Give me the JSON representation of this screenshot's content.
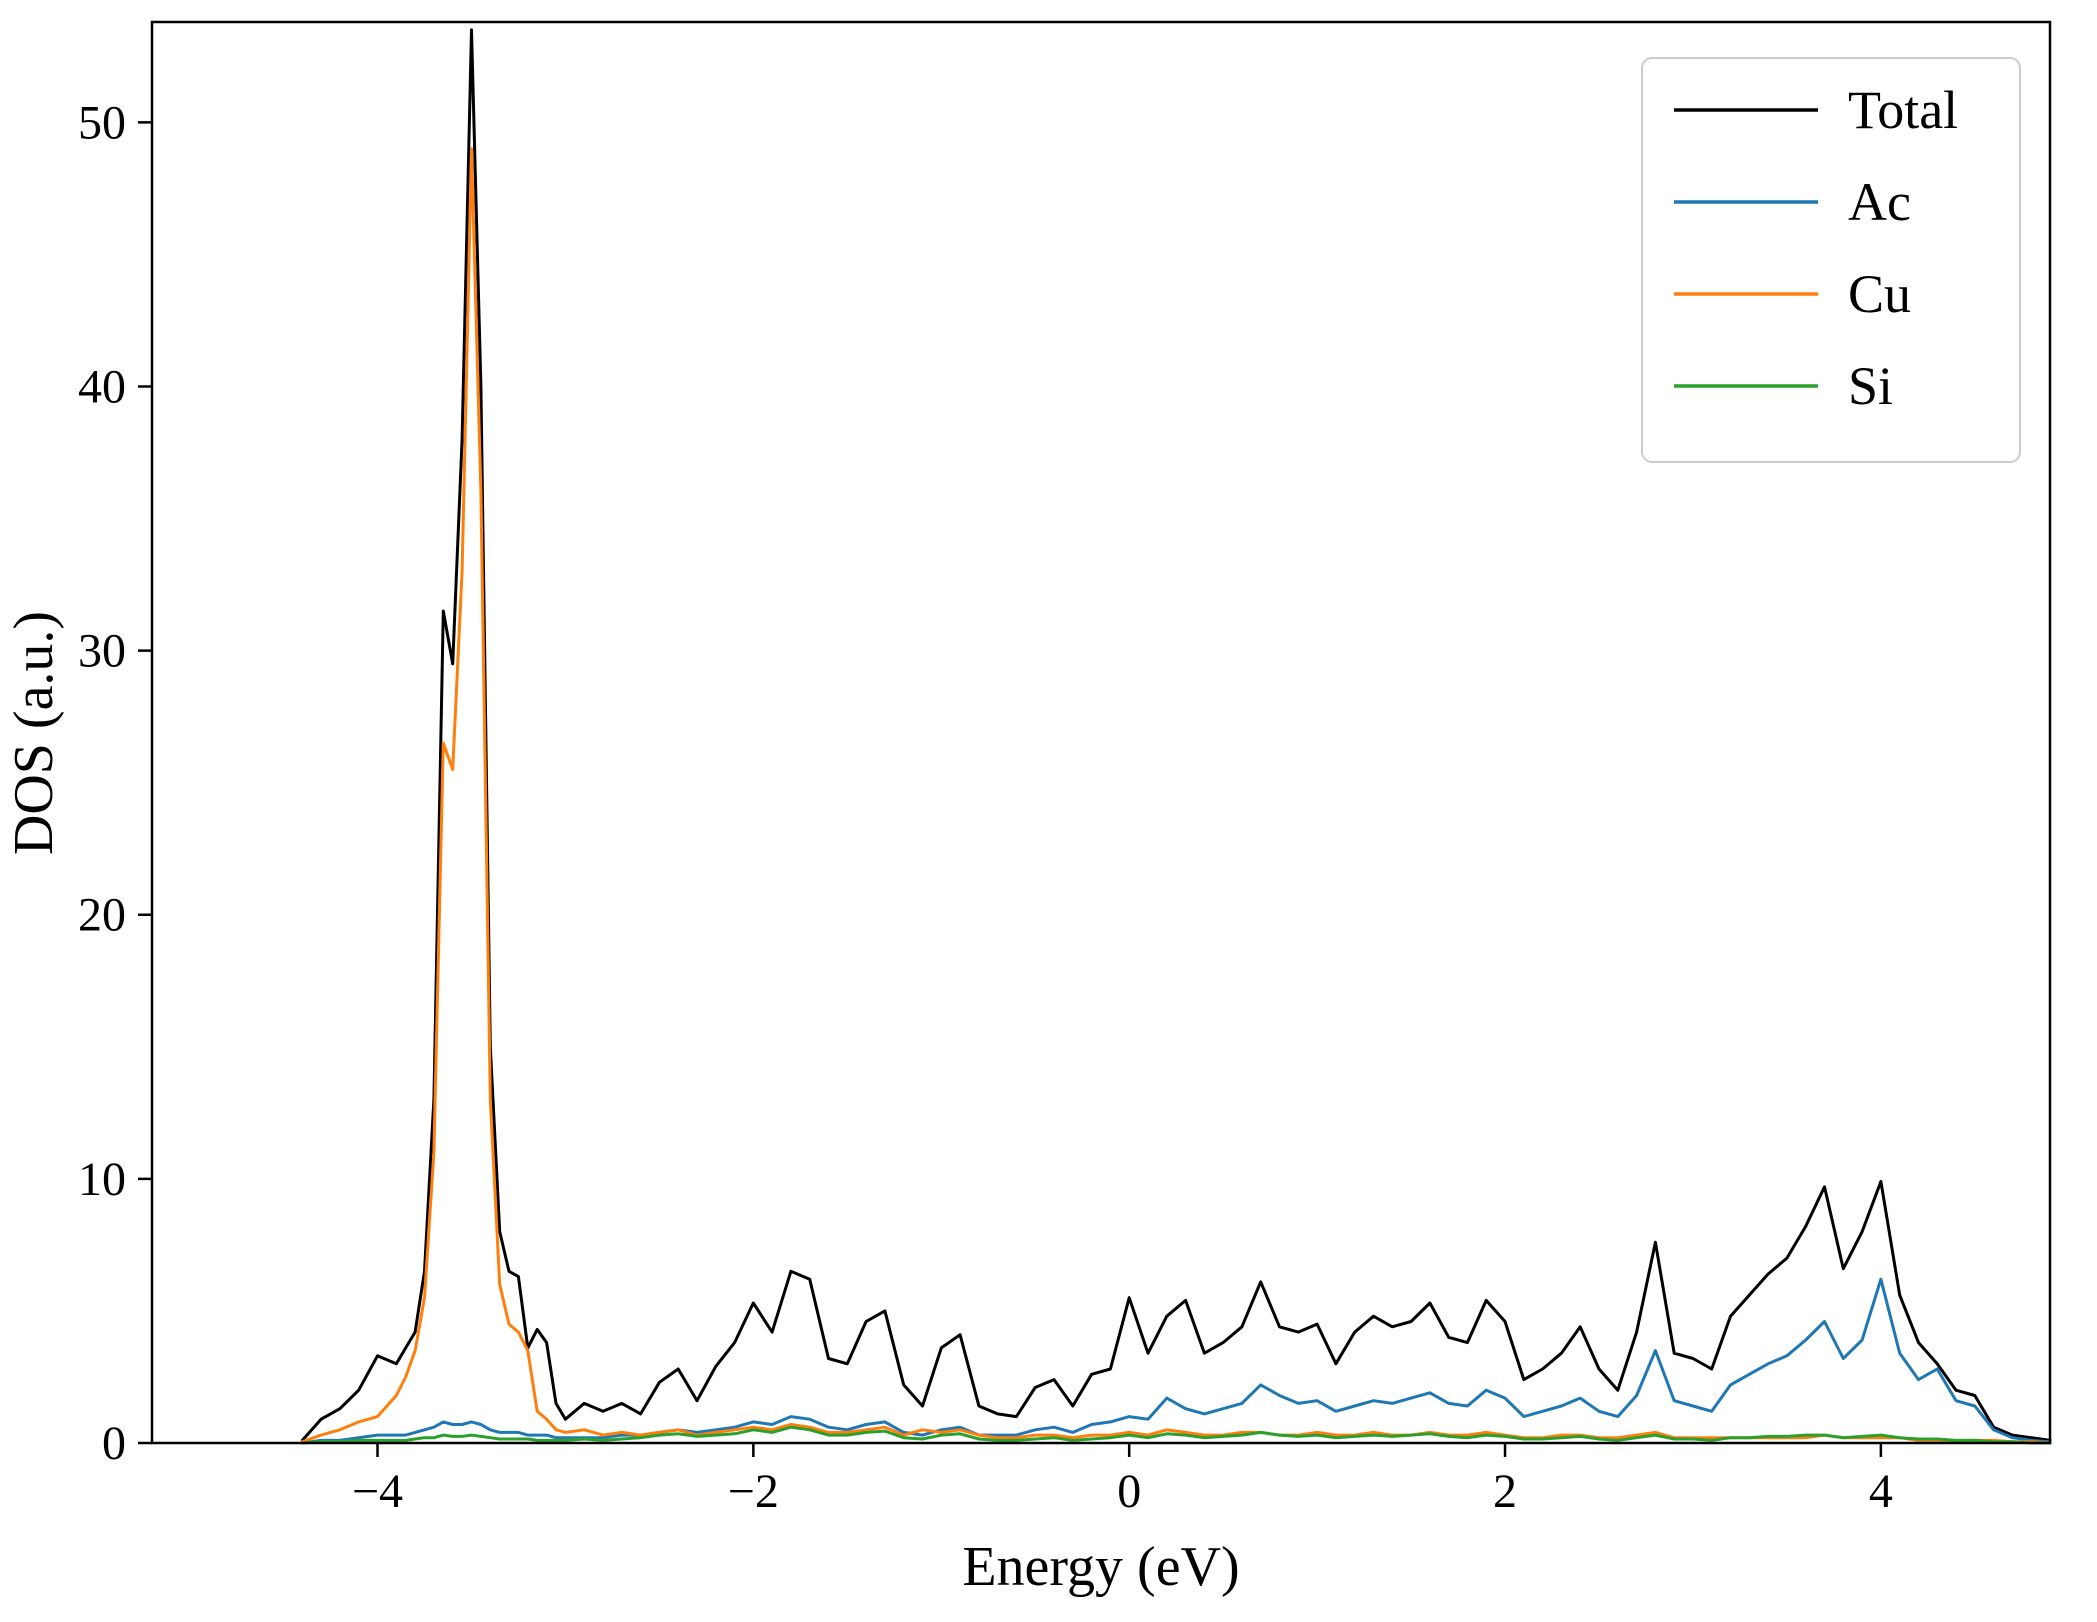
{
  "figure": {
    "background": "#ffffff"
  },
  "chart_data": {
    "type": "line",
    "title": "",
    "xlabel": "Energy (eV)",
    "ylabel": "DOS (a.u.)",
    "xlim": [
      -5.2,
      4.9
    ],
    "ylim": [
      0,
      53.8
    ],
    "grid": false,
    "xticks": [
      {
        "v": -4,
        "label": "−4"
      },
      {
        "v": -2,
        "label": "−2"
      },
      {
        "v": 0,
        "label": "0"
      },
      {
        "v": 2,
        "label": "2"
      },
      {
        "v": 4,
        "label": "4"
      }
    ],
    "yticks": [
      {
        "v": 0,
        "label": "0"
      },
      {
        "v": 10,
        "label": "10"
      },
      {
        "v": 20,
        "label": "20"
      },
      {
        "v": 30,
        "label": "30"
      },
      {
        "v": 40,
        "label": "40"
      },
      {
        "v": 50,
        "label": "50"
      }
    ],
    "legend": {
      "position": "upper right",
      "entries": [
        "Total",
        "Ac",
        "Cu",
        "Si"
      ]
    },
    "x": [
      -4.4,
      -4.3,
      -4.2,
      -4.1,
      -4.0,
      -3.9,
      -3.85,
      -3.8,
      -3.75,
      -3.7,
      -3.65,
      -3.6,
      -3.55,
      -3.5,
      -3.45,
      -3.4,
      -3.35,
      -3.3,
      -3.25,
      -3.2,
      -3.15,
      -3.1,
      -3.05,
      -3.0,
      -2.9,
      -2.8,
      -2.7,
      -2.6,
      -2.5,
      -2.4,
      -2.3,
      -2.2,
      -2.1,
      -2.0,
      -1.9,
      -1.8,
      -1.7,
      -1.6,
      -1.5,
      -1.4,
      -1.3,
      -1.2,
      -1.1,
      -1.0,
      -0.9,
      -0.8,
      -0.7,
      -0.6,
      -0.5,
      -0.4,
      -0.3,
      -0.2,
      -0.1,
      0.0,
      0.1,
      0.2,
      0.3,
      0.4,
      0.5,
      0.6,
      0.7,
      0.8,
      0.9,
      1.0,
      1.1,
      1.2,
      1.3,
      1.4,
      1.5,
      1.6,
      1.7,
      1.8,
      1.9,
      2.0,
      2.1,
      2.2,
      2.3,
      2.4,
      2.5,
      2.6,
      2.7,
      2.8,
      2.9,
      3.0,
      3.1,
      3.2,
      3.3,
      3.4,
      3.5,
      3.6,
      3.7,
      3.8,
      3.9,
      4.0,
      4.1,
      4.2,
      4.3,
      4.4,
      4.5,
      4.6,
      4.7,
      4.8,
      4.9
    ],
    "series": [
      {
        "name": "Total",
        "color": "#000000",
        "values": [
          0.1,
          0.9,
          1.3,
          2.0,
          3.3,
          3.0,
          3.6,
          4.2,
          6.5,
          13.0,
          31.5,
          29.5,
          38.0,
          53.5,
          40.0,
          15.0,
          8.0,
          6.5,
          6.3,
          3.6,
          4.3,
          3.8,
          1.5,
          0.9,
          1.5,
          1.2,
          1.5,
          1.1,
          2.3,
          2.8,
          1.6,
          2.9,
          3.8,
          5.3,
          4.2,
          6.5,
          6.2,
          3.2,
          3.0,
          4.6,
          5.0,
          2.2,
          1.4,
          3.6,
          4.1,
          1.4,
          1.1,
          1.0,
          2.1,
          2.4,
          1.4,
          2.6,
          2.8,
          5.5,
          3.4,
          4.8,
          5.4,
          3.4,
          3.8,
          4.4,
          6.1,
          4.4,
          4.2,
          4.5,
          3.0,
          4.2,
          4.8,
          4.4,
          4.6,
          5.3,
          4.0,
          3.8,
          5.4,
          4.6,
          2.4,
          2.8,
          3.4,
          4.4,
          2.8,
          2.0,
          4.2,
          7.6,
          3.4,
          3.2,
          2.8,
          4.8,
          5.6,
          6.4,
          7.0,
          8.2,
          9.7,
          6.6,
          8.0,
          9.9,
          5.6,
          3.8,
          3.0,
          2.0,
          1.8,
          0.6,
          0.3,
          0.2,
          0.1
        ]
      },
      {
        "name": "Ac",
        "color": "#1f77b4",
        "values": [
          0.0,
          0.1,
          0.1,
          0.2,
          0.3,
          0.3,
          0.3,
          0.4,
          0.5,
          0.6,
          0.8,
          0.7,
          0.7,
          0.8,
          0.7,
          0.5,
          0.4,
          0.4,
          0.4,
          0.3,
          0.3,
          0.3,
          0.2,
          0.2,
          0.2,
          0.2,
          0.3,
          0.3,
          0.4,
          0.5,
          0.4,
          0.5,
          0.6,
          0.8,
          0.7,
          1.0,
          0.9,
          0.6,
          0.5,
          0.7,
          0.8,
          0.4,
          0.3,
          0.5,
          0.6,
          0.3,
          0.3,
          0.3,
          0.5,
          0.6,
          0.4,
          0.7,
          0.8,
          1.0,
          0.9,
          1.7,
          1.3,
          1.1,
          1.3,
          1.5,
          2.2,
          1.8,
          1.5,
          1.6,
          1.2,
          1.4,
          1.6,
          1.5,
          1.7,
          1.9,
          1.5,
          1.4,
          2.0,
          1.7,
          1.0,
          1.2,
          1.4,
          1.7,
          1.2,
          1.0,
          1.8,
          3.5,
          1.6,
          1.4,
          1.2,
          2.2,
          2.6,
          3.0,
          3.3,
          3.9,
          4.6,
          3.2,
          3.9,
          6.2,
          3.4,
          2.4,
          2.8,
          1.6,
          1.4,
          0.5,
          0.2,
          0.1,
          0.05
        ]
      },
      {
        "name": "Cu",
        "color": "#ff7f0e",
        "values": [
          0.05,
          0.3,
          0.5,
          0.8,
          1.0,
          1.8,
          2.5,
          3.5,
          5.5,
          11.0,
          26.5,
          25.5,
          33.0,
          49.0,
          36.0,
          13.0,
          6.0,
          4.5,
          4.2,
          3.5,
          1.2,
          0.9,
          0.5,
          0.4,
          0.5,
          0.3,
          0.4,
          0.3,
          0.4,
          0.5,
          0.3,
          0.4,
          0.5,
          0.6,
          0.5,
          0.7,
          0.6,
          0.4,
          0.4,
          0.5,
          0.6,
          0.3,
          0.5,
          0.4,
          0.5,
          0.3,
          0.2,
          0.2,
          0.3,
          0.3,
          0.2,
          0.3,
          0.3,
          0.4,
          0.3,
          0.5,
          0.4,
          0.3,
          0.3,
          0.4,
          0.4,
          0.3,
          0.3,
          0.4,
          0.3,
          0.3,
          0.4,
          0.3,
          0.3,
          0.4,
          0.3,
          0.3,
          0.4,
          0.3,
          0.2,
          0.2,
          0.3,
          0.3,
          0.2,
          0.2,
          0.3,
          0.4,
          0.2,
          0.2,
          0.2,
          0.2,
          0.2,
          0.2,
          0.2,
          0.2,
          0.3,
          0.2,
          0.2,
          0.2,
          0.2,
          0.1,
          0.1,
          0.1,
          0.1,
          0.1,
          0.05,
          0.05,
          0.0
        ]
      },
      {
        "name": "Si",
        "color": "#2ca02c",
        "values": [
          0.0,
          0.05,
          0.05,
          0.1,
          0.1,
          0.1,
          0.1,
          0.15,
          0.2,
          0.2,
          0.3,
          0.25,
          0.25,
          0.3,
          0.25,
          0.2,
          0.15,
          0.15,
          0.15,
          0.15,
          0.1,
          0.1,
          0.1,
          0.1,
          0.15,
          0.1,
          0.15,
          0.2,
          0.3,
          0.35,
          0.25,
          0.3,
          0.35,
          0.5,
          0.4,
          0.6,
          0.5,
          0.3,
          0.3,
          0.4,
          0.45,
          0.2,
          0.15,
          0.3,
          0.35,
          0.15,
          0.1,
          0.1,
          0.15,
          0.2,
          0.1,
          0.15,
          0.2,
          0.3,
          0.2,
          0.35,
          0.3,
          0.2,
          0.25,
          0.3,
          0.4,
          0.3,
          0.25,
          0.3,
          0.2,
          0.25,
          0.3,
          0.25,
          0.3,
          0.35,
          0.25,
          0.2,
          0.3,
          0.25,
          0.15,
          0.15,
          0.2,
          0.25,
          0.15,
          0.1,
          0.2,
          0.3,
          0.15,
          0.15,
          0.1,
          0.2,
          0.2,
          0.25,
          0.25,
          0.3,
          0.3,
          0.2,
          0.25,
          0.3,
          0.2,
          0.15,
          0.15,
          0.1,
          0.1,
          0.05,
          0.05,
          0.0,
          0.0
        ]
      }
    ]
  }
}
